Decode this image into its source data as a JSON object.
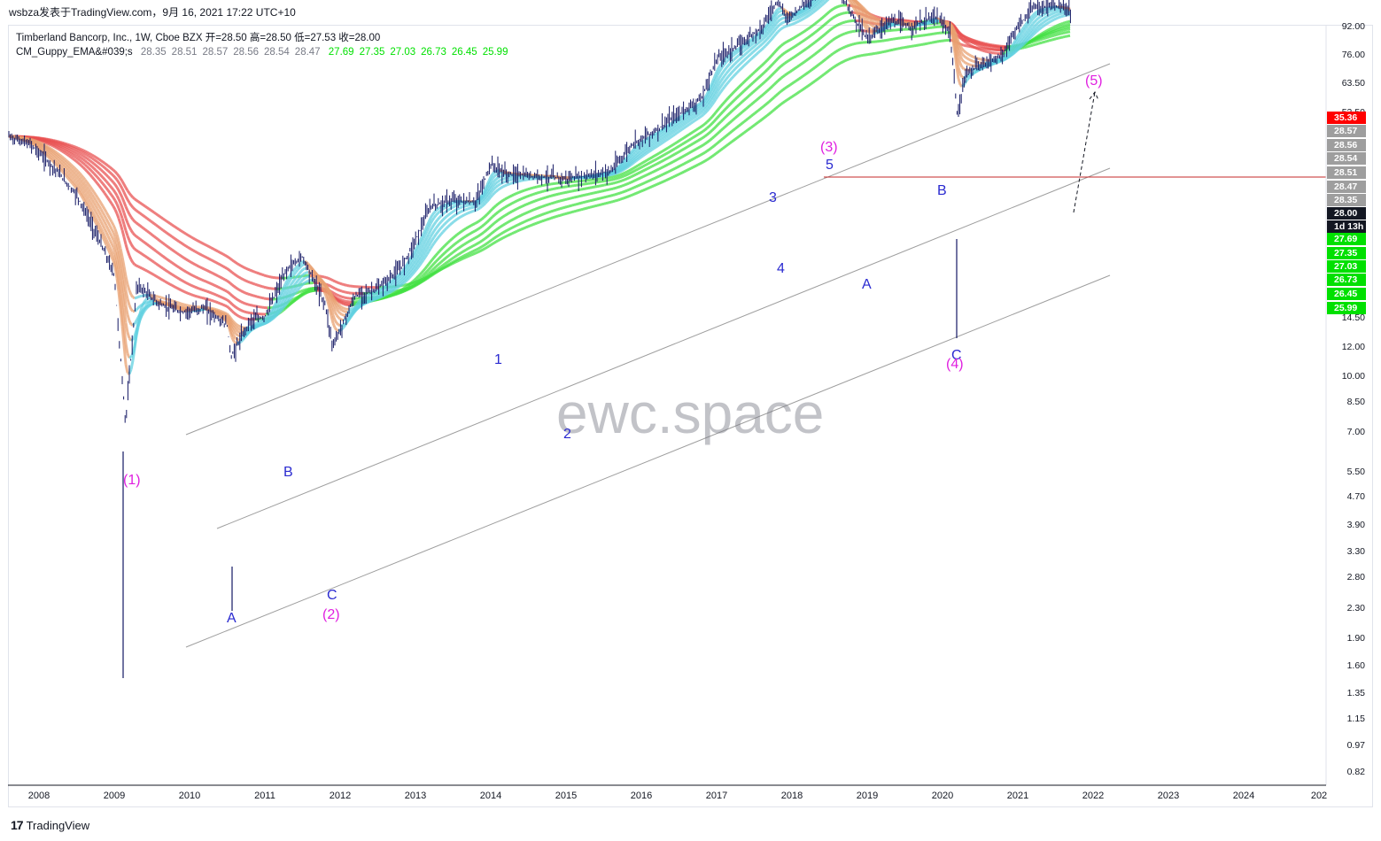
{
  "header": {
    "publish_line": "wsbza发表于TradingView.com，9月 16, 2021 17:22 UTC+10"
  },
  "legend": {
    "symbol_line": "Timberland Bancorp, Inc., 1W, Cboe BZX",
    "ohlc": [
      {
        "label": "开",
        "value": "28.50"
      },
      {
        "label": "高",
        "value": "28.50"
      },
      {
        "label": "低",
        "value": "27.53"
      },
      {
        "label": "收",
        "value": "28.00"
      }
    ],
    "indicator_name": "CM_Guppy_EMA&#039;s",
    "indicator_values_gray": [
      "28.35",
      "28.51",
      "28.57",
      "28.56",
      "28.54",
      "28.47"
    ],
    "indicator_values_green": [
      "27.69",
      "27.35",
      "27.03",
      "26.73",
      "26.45",
      "25.99"
    ]
  },
  "watermark": "ewc.space",
  "brand": {
    "logo": "17",
    "name": "TradingView"
  },
  "colors": {
    "candle": "#131763",
    "guppy_short_bear": "#e8a070",
    "guppy_long_bear": "#e85050",
    "guppy_long_bull": "#40e040",
    "guppy_short_bull": "#60d0e0",
    "channel": "#9e9e9e",
    "resistance": "#c62828",
    "wave_blue": "#2a2ad0",
    "wave_magenta": "#e020e0",
    "badge_red": "#ff0000",
    "badge_gray": "#9e9e9e",
    "badge_green": "#00e000",
    "badge_dark": "#131722"
  },
  "wave_labels": [
    {
      "text": "(1)",
      "color": "magenta"
    },
    {
      "text": "A",
      "color": "blue"
    },
    {
      "text": "B",
      "color": "blue"
    },
    {
      "text": "C",
      "color": "blue"
    },
    {
      "text": "(2)",
      "color": "magenta"
    },
    {
      "text": "1",
      "color": "blue"
    },
    {
      "text": "2",
      "color": "blue"
    },
    {
      "text": "3",
      "color": "blue"
    },
    {
      "text": "4",
      "color": "blue"
    },
    {
      "text": "5",
      "color": "blue"
    },
    {
      "text": "(3)",
      "color": "magenta"
    },
    {
      "text": "A",
      "color": "blue"
    },
    {
      "text": "B",
      "color": "blue"
    },
    {
      "text": "C",
      "color": "blue"
    },
    {
      "text": "(4)",
      "color": "magenta"
    },
    {
      "text": "(5)",
      "color": "magenta"
    }
  ],
  "price_axis": [
    "92.00",
    "76.00",
    "63.50",
    "52.50",
    "14.50",
    "12.00",
    "10.00",
    "8.50",
    "7.00",
    "5.50",
    "4.70",
    "3.90",
    "3.30",
    "2.80",
    "2.30",
    "1.90",
    "1.60",
    "1.35",
    "1.15",
    "0.97",
    "0.82"
  ],
  "price_badges": [
    {
      "text": "35.36",
      "kind": "red"
    },
    {
      "text": "28.57",
      "kind": "gray"
    },
    {
      "text": "28.56",
      "kind": "gray"
    },
    {
      "text": "28.54",
      "kind": "gray"
    },
    {
      "text": "28.51",
      "kind": "gray"
    },
    {
      "text": "28.47",
      "kind": "gray"
    },
    {
      "text": "28.35",
      "kind": "gray"
    },
    {
      "text": "28.00",
      "kind": "dark"
    },
    {
      "text": "1d 13h",
      "kind": "dark"
    },
    {
      "text": "27.69",
      "kind": "green"
    },
    {
      "text": "27.35",
      "kind": "green"
    },
    {
      "text": "27.03",
      "kind": "green"
    },
    {
      "text": "26.73",
      "kind": "green"
    },
    {
      "text": "26.45",
      "kind": "green"
    },
    {
      "text": "25.99",
      "kind": "green"
    }
  ],
  "time_axis": [
    "2008",
    "2009",
    "2010",
    "2011",
    "2012",
    "2013",
    "2014",
    "2015",
    "2016",
    "2017",
    "2018",
    "2019",
    "2020",
    "2021",
    "2022",
    "2023",
    "2024",
    "202"
  ],
  "chart_data": {
    "type": "line",
    "title": "Timberland Bancorp, Inc., 1W, Cboe BZX",
    "scale": "log",
    "ylim": [
      0.75,
      95
    ],
    "x_ticks": [
      "2008",
      "2009",
      "2010",
      "2011",
      "2012",
      "2013",
      "2014",
      "2015",
      "2016",
      "2017",
      "2018",
      "2019",
      "2020",
      "2021",
      "2022",
      "2023",
      "2024"
    ],
    "series": [
      {
        "name": "",
        "x": [
          2007.6,
          2007.9,
          2008.2,
          2008.5,
          2008.8,
          2009.0,
          2009.15,
          2009.3,
          2009.6,
          2009.9,
          2010.2,
          2010.5,
          2010.55,
          2010.8,
          2011.0,
          2011.3,
          2011.5,
          2011.8,
          2011.9,
          2012.2,
          2012.5,
          2012.8,
          2013.0,
          2013.2,
          2013.5,
          2013.8,
          2014.0,
          2014.2,
          2014.5,
          2014.8,
          2015.0,
          2015.3,
          2015.6,
          2015.9,
          2016.2,
          2016.5,
          2016.8,
          2017.0,
          2017.3,
          2017.6,
          2017.8,
          2017.95,
          2018.2,
          2018.5,
          2018.7,
          2018.9,
          2019.0,
          2019.3,
          2019.6,
          2019.9,
          2020.1,
          2020.2,
          2020.3,
          2020.5,
          2020.8,
          2021.0,
          2021.2,
          2021.5,
          2021.7
        ],
        "values": [
          11.5,
          10.8,
          9.2,
          7.6,
          5.5,
          4.3,
          1.5,
          4.0,
          3.5,
          3.3,
          3.4,
          3.0,
          2.4,
          3.1,
          3.2,
          4.5,
          4.9,
          3.5,
          2.6,
          3.7,
          3.9,
          4.5,
          5.5,
          7.0,
          7.3,
          7.2,
          9.4,
          8.8,
          8.7,
          8.6,
          8.5,
          8.7,
          9.0,
          11.0,
          12.0,
          13.5,
          15.0,
          20.0,
          22.0,
          25.0,
          30.0,
          26.5,
          30.0,
          36.5,
          30.0,
          25.0,
          23.0,
          26.0,
          25.0,
          27.0,
          24.0,
          13.0,
          18.0,
          19.0,
          20.5,
          25.0,
          28.5,
          29.0,
          28.0
        ]
      }
    ],
    "annotations": [
      "(1)",
      "A",
      "B",
      "C",
      "(2)",
      "1",
      "2",
      "3",
      "4",
      "5",
      "(3)",
      "A",
      "B",
      "C",
      "(4)",
      "(5)"
    ],
    "last_close": 28.0,
    "resistance_level": 35.36
  }
}
